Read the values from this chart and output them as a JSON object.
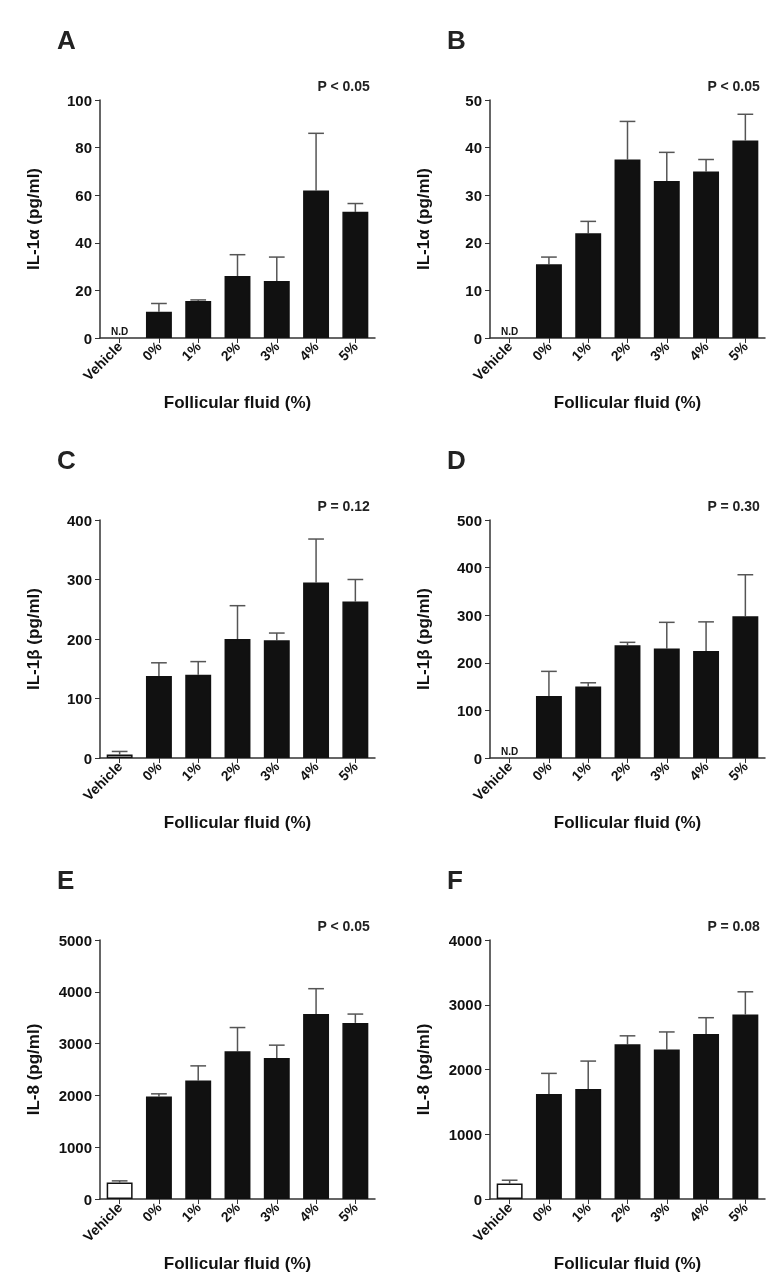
{
  "chart_data": [
    {
      "type": "bar",
      "title": "A",
      "xlabel": "Follicular fluid (%)",
      "ylabel": "IL-1α (pg/ml)",
      "categories": [
        "Vehicle",
        "0%",
        "1%",
        "2%",
        "3%",
        "4%",
        "5%"
      ],
      "values": [
        null,
        11,
        15.5,
        26,
        24,
        62,
        53
      ],
      "colors": [
        "#ffffff",
        "#111111",
        "#111111",
        "#111111",
        "#111111",
        "#111111",
        "#111111"
      ],
      "errors": [
        null,
        [
          11,
          14.5
        ],
        [
          15.5,
          16
        ],
        [
          26,
          35
        ],
        [
          24,
          34
        ],
        [
          62,
          86
        ],
        [
          53,
          56.5
        ]
      ],
      "ylim": [
        0,
        100
      ],
      "yticks": [
        0,
        20,
        40,
        60,
        80,
        100
      ],
      "annotations": [
        "P < 0.05",
        "N.D"
      ]
    },
    {
      "type": "bar",
      "title": "B",
      "xlabel": "Follicular fluid (%)",
      "ylabel": "IL-1α (pg/ml)",
      "categories": [
        "Vehicle",
        "0%",
        "1%",
        "2%",
        "3%",
        "4%",
        "5%"
      ],
      "values": [
        null,
        15.5,
        22,
        37.5,
        33,
        35,
        41.5
      ],
      "colors": [
        "#ffffff",
        "#111111",
        "#111111",
        "#111111",
        "#111111",
        "#111111",
        "#111111"
      ],
      "errors": [
        null,
        [
          15.5,
          17
        ],
        [
          22,
          24.5
        ],
        [
          37.5,
          45.5
        ],
        [
          33,
          39
        ],
        [
          35,
          37.5
        ],
        [
          41.5,
          47
        ]
      ],
      "ylim": [
        0,
        50
      ],
      "yticks": [
        0,
        10,
        20,
        30,
        40,
        50
      ],
      "annotations": [
        "P < 0.05",
        "N.D"
      ]
    },
    {
      "type": "bar",
      "title": "C",
      "xlabel": "Follicular fluid (%)",
      "ylabel": "IL-1β (pg/ml)",
      "categories": [
        "Vehicle",
        "0%",
        "1%",
        "2%",
        "3%",
        "4%",
        "5%"
      ],
      "values": [
        6,
        138,
        140,
        200,
        198,
        295,
        263
      ],
      "colors": [
        "#ffffff",
        "#111111",
        "#111111",
        "#111111",
        "#111111",
        "#111111",
        "#111111"
      ],
      "errors": [
        [
          6,
          11
        ],
        [
          138,
          160
        ],
        [
          140,
          162
        ],
        [
          200,
          256
        ],
        [
          198,
          210
        ],
        [
          295,
          368
        ],
        [
          263,
          300
        ]
      ],
      "ylim": [
        0,
        400
      ],
      "yticks": [
        0,
        100,
        200,
        300,
        400
      ],
      "annotations": [
        "P = 0.12"
      ]
    },
    {
      "type": "bar",
      "title": "D",
      "xlabel": "Follicular fluid (%)",
      "ylabel": "IL-1β (pg/ml)",
      "categories": [
        "Vehicle",
        "0%",
        "1%",
        "2%",
        "3%",
        "4%",
        "5%"
      ],
      "values": [
        null,
        130,
        150,
        237,
        230,
        225,
        298
      ],
      "colors": [
        "#ffffff",
        "#111111",
        "#111111",
        "#111111",
        "#111111",
        "#111111",
        "#111111"
      ],
      "errors": [
        null,
        [
          130,
          182
        ],
        [
          150,
          158
        ],
        [
          237,
          243
        ],
        [
          230,
          285
        ],
        [
          225,
          286
        ],
        [
          298,
          385
        ]
      ],
      "ylim": [
        0,
        500
      ],
      "yticks": [
        0,
        100,
        200,
        300,
        400,
        500
      ],
      "annotations": [
        "P = 0.30",
        "N.D"
      ]
    },
    {
      "type": "bar",
      "title": "E",
      "xlabel": "Follicular fluid (%)",
      "ylabel": "IL-8 (pg/ml)",
      "categories": [
        "Vehicle",
        "0%",
        "1%",
        "2%",
        "3%",
        "4%",
        "5%"
      ],
      "values": [
        320,
        1980,
        2290,
        2850,
        2720,
        3570,
        3400
      ],
      "colors": [
        "#ffffff",
        "#111111",
        "#111111",
        "#111111",
        "#111111",
        "#111111",
        "#111111"
      ],
      "errors": [
        [
          320,
          350
        ],
        [
          1980,
          2030
        ],
        [
          2290,
          2570
        ],
        [
          2850,
          3310
        ],
        [
          2720,
          2970
        ],
        [
          3570,
          4060
        ],
        [
          3400,
          3570
        ]
      ],
      "ylim": [
        0,
        5000
      ],
      "yticks": [
        0,
        1000,
        2000,
        3000,
        4000,
        5000
      ],
      "annotations": [
        "P < 0.05"
      ]
    },
    {
      "type": "bar",
      "title": "F",
      "xlabel": "Follicular fluid (%)",
      "ylabel": "IL-8 (pg/ml)",
      "categories": [
        "Vehicle",
        "0%",
        "1%",
        "2%",
        "3%",
        "4%",
        "5%"
      ],
      "values": [
        240,
        1620,
        1700,
        2390,
        2310,
        2550,
        2850
      ],
      "colors": [
        "#ffffff",
        "#111111",
        "#111111",
        "#111111",
        "#111111",
        "#111111",
        "#111111"
      ],
      "errors": [
        [
          240,
          290
        ],
        [
          1620,
          1940
        ],
        [
          1700,
          2130
        ],
        [
          2390,
          2520
        ],
        [
          2310,
          2580
        ],
        [
          2550,
          2800
        ],
        [
          2850,
          3200
        ]
      ],
      "ylim": [
        0,
        4000
      ],
      "yticks": [
        0,
        1000,
        2000,
        3000,
        4000
      ],
      "annotations": [
        "P = 0.08"
      ]
    }
  ]
}
